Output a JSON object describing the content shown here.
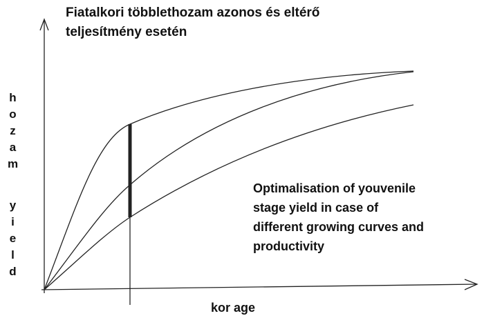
{
  "title_lines": [
    "Fiatalkori többlethozam azonos és eltérő",
    "teljesítmény esetén"
  ],
  "y_label": [
    "hozam",
    "yield"
  ],
  "x_label": "kor age",
  "annotation_lines": [
    "Optimalisation of  youvenile",
    "stage yield in case of",
    "different growing curves and",
    "productivity"
  ]
}
